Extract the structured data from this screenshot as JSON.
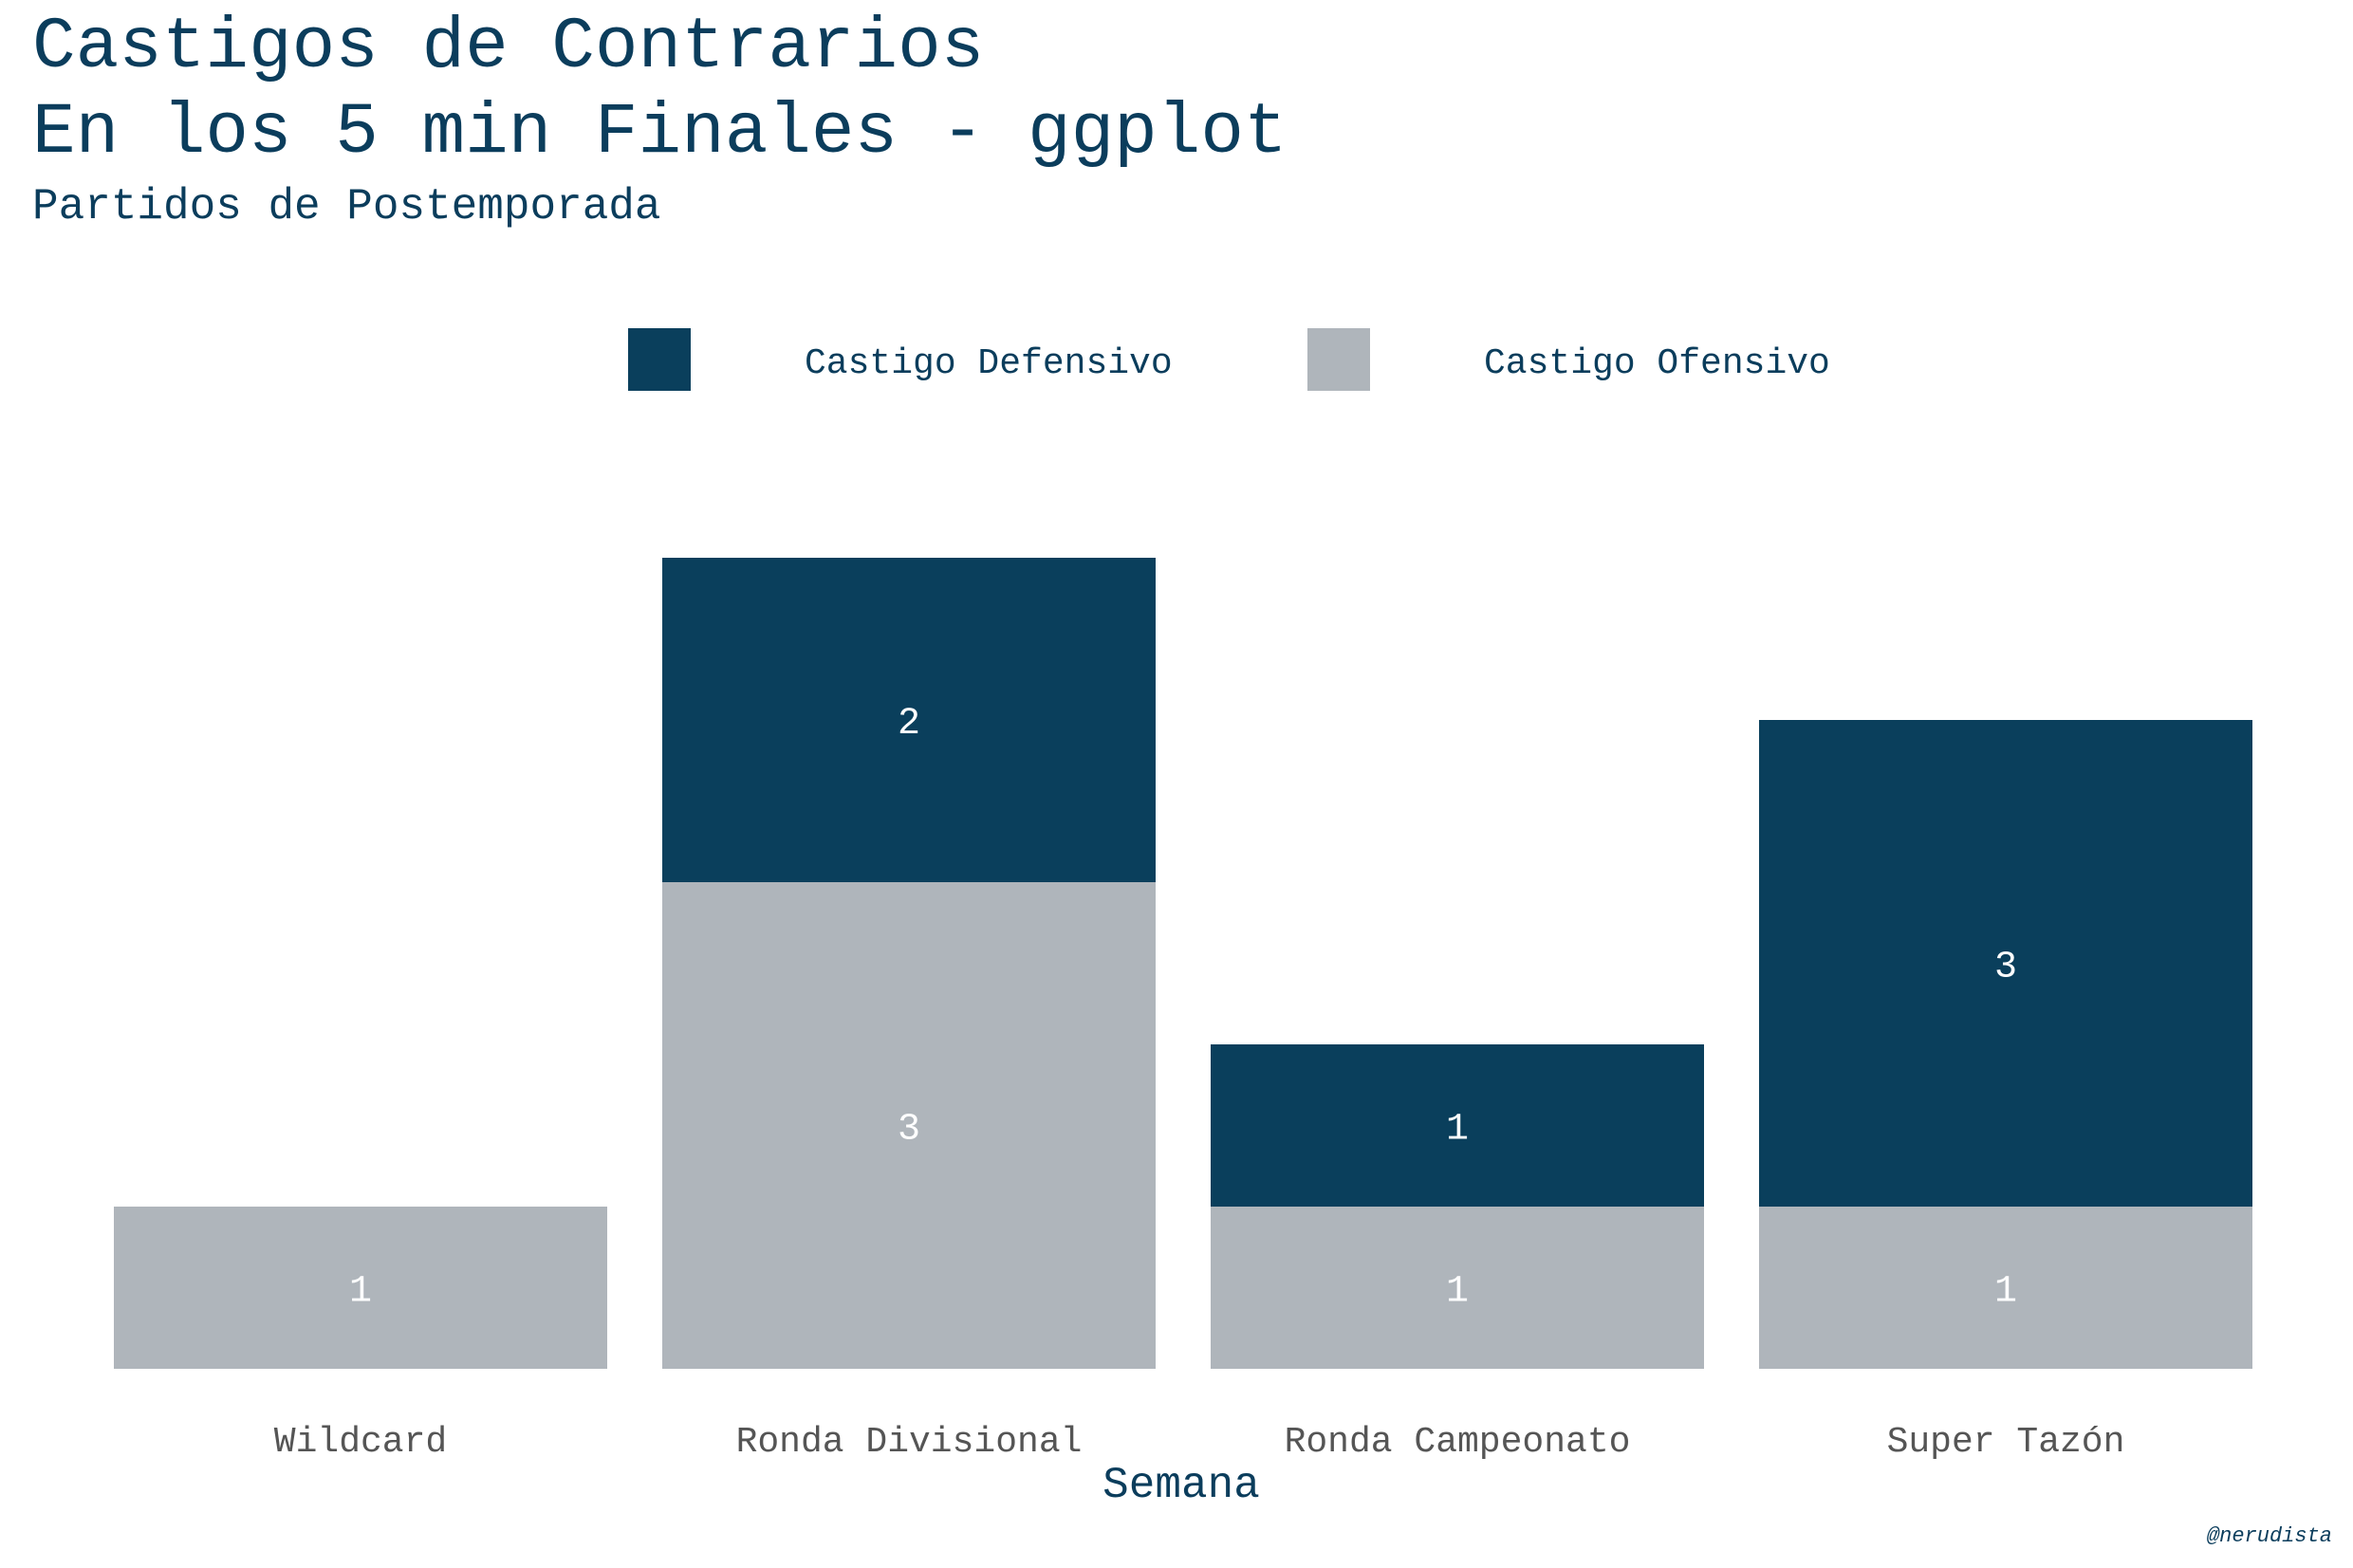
{
  "chart_data": {
    "type": "bar",
    "stacked": true,
    "title": [
      "Castigos de Contrarios",
      "En los 5 min Finales - ggplot"
    ],
    "subtitle": "Partidos de Postemporada",
    "xlabel": "Semana",
    "ylabel": "",
    "caption": "@nerudista",
    "categories": [
      "Wildcard",
      "Ronda Divisional",
      "Ronda Campeonato",
      "Super Tazón"
    ],
    "series": [
      {
        "name": "Castigo Ofensivo",
        "color": "#afb5bb",
        "values": [
          1,
          3,
          1,
          1
        ]
      },
      {
        "name": "Castigo Defensivo",
        "color": "#0a3f5c",
        "values": [
          0,
          2,
          1,
          3
        ]
      }
    ],
    "legend": {
      "position": "top",
      "order": [
        "Castigo Defensivo",
        "Castigo Ofensivo"
      ]
    },
    "ylim": [
      0,
      5
    ],
    "grid": false,
    "data_labels": true
  }
}
